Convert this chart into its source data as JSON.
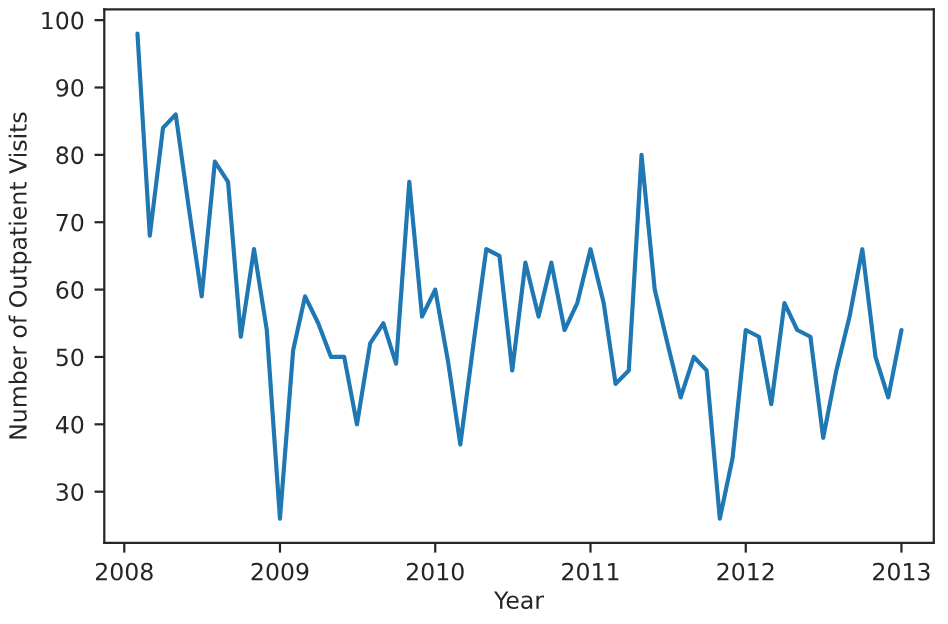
{
  "chart_data": {
    "type": "line",
    "xlabel": "Year",
    "ylabel": "Number of Outpatient Visits",
    "x": [
      "2008-02",
      "2008-03",
      "2008-04",
      "2008-05",
      "2008-06",
      "2008-07",
      "2008-08",
      "2008-09",
      "2008-10",
      "2008-11",
      "2008-12",
      "2009-01",
      "2009-02",
      "2009-03",
      "2009-04",
      "2009-05",
      "2009-06",
      "2009-07",
      "2009-08",
      "2009-09",
      "2009-10",
      "2009-11",
      "2009-12",
      "2010-01",
      "2010-02",
      "2010-03",
      "2010-04",
      "2010-05",
      "2010-06",
      "2010-07",
      "2010-08",
      "2010-09",
      "2010-10",
      "2010-11",
      "2010-12",
      "2011-01",
      "2011-02",
      "2011-03",
      "2011-04",
      "2011-05",
      "2011-06",
      "2011-07",
      "2011-08",
      "2011-09",
      "2011-10",
      "2011-11",
      "2011-12",
      "2012-01",
      "2012-02",
      "2012-03",
      "2012-04",
      "2012-05",
      "2012-06",
      "2012-07",
      "2012-08",
      "2012-09",
      "2012-10",
      "2012-11",
      "2012-12",
      "2013-01"
    ],
    "series": [
      {
        "color": "#1f77b4",
        "values": [
          98,
          68,
          84,
          86,
          72,
          59,
          79,
          76,
          53,
          66,
          54,
          26,
          51,
          59,
          55,
          50,
          50,
          40,
          52,
          55,
          49,
          76,
          56,
          60,
          49,
          37,
          52,
          66,
          65,
          48,
          64,
          56,
          64,
          54,
          58,
          66,
          58,
          46,
          48,
          80,
          60,
          52,
          44,
          50,
          48,
          26,
          35,
          54,
          53,
          43,
          58,
          54,
          53,
          38,
          48,
          56,
          66,
          50,
          44,
          54
        ]
      }
    ],
    "xlim": [
      "2007-11-15",
      "2013-03-18"
    ],
    "xticks": [
      "2008",
      "2009",
      "2010",
      "2011",
      "2012",
      "2013"
    ],
    "ylim": [
      22.4,
      101.6
    ],
    "yticks": [
      30,
      40,
      50,
      60,
      70,
      80,
      90,
      100
    ],
    "grid": false,
    "legend": false,
    "marker": "none",
    "line_style": "solid"
  }
}
